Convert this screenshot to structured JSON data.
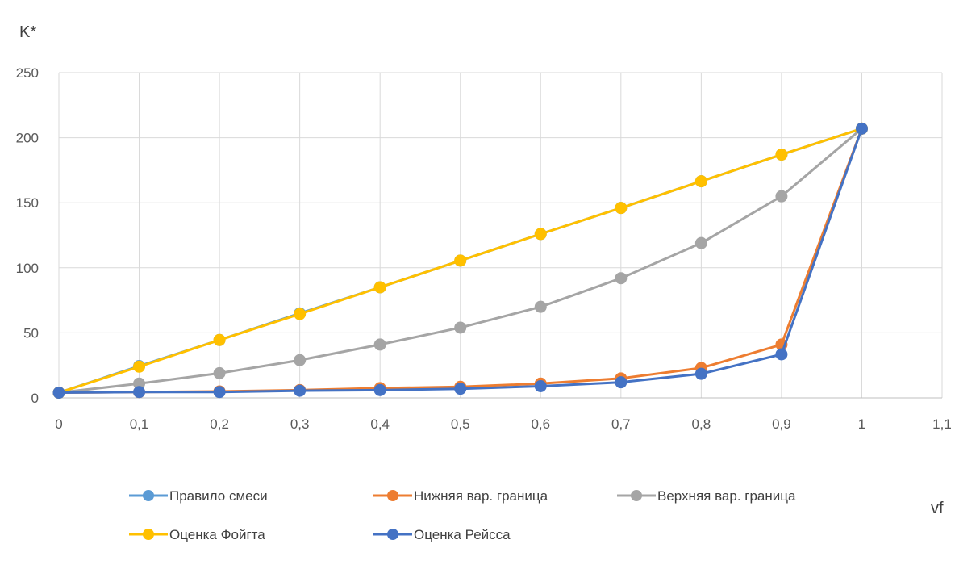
{
  "chart_data": {
    "type": "line",
    "title": "",
    "ylabel": "K*",
    "xlabel": "vf",
    "xlim": [
      0,
      1.1
    ],
    "ylim": [
      0,
      250
    ],
    "x_ticks": [
      "0",
      "0,1",
      "0,2",
      "0,3",
      "0,4",
      "0,5",
      "0,6",
      "0,7",
      "0,8",
      "0,9",
      "1",
      "1,1"
    ],
    "y_ticks": [
      "0",
      "50",
      "100",
      "150",
      "200",
      "250"
    ],
    "grid": true,
    "legend_position": "bottom",
    "x": [
      0,
      0.1,
      0.2,
      0.3,
      0.4,
      0.5,
      0.6,
      0.7,
      0.8,
      0.9,
      1.0
    ],
    "series": [
      {
        "name": "Правило смеси",
        "color": "#5b9bd5",
        "values": [
          4,
          24.5,
          44.5,
          65,
          85,
          105.5,
          126,
          146,
          166.5,
          187,
          207
        ]
      },
      {
        "name": "Нижняя вар. граница",
        "color": "#ed7d31",
        "values": [
          4,
          4.5,
          5,
          6,
          7.5,
          8.5,
          11,
          15,
          23,
          41,
          207
        ]
      },
      {
        "name": "Верхняя вар. граница",
        "color": "#a5a5a5",
        "values": [
          4,
          11,
          19,
          29,
          41,
          54,
          70,
          92,
          119,
          155,
          207
        ]
      },
      {
        "name": "Оценка Фойгта",
        "color": "#ffc000",
        "values": [
          4,
          24,
          44.5,
          64.5,
          85,
          105.5,
          126,
          146,
          166.5,
          187,
          207
        ]
      },
      {
        "name": "Оценка Рейсса",
        "color": "#4472c4",
        "values": [
          4,
          4.5,
          4.5,
          5.5,
          6,
          7,
          9,
          12,
          18.5,
          33.5,
          207
        ]
      }
    ]
  }
}
